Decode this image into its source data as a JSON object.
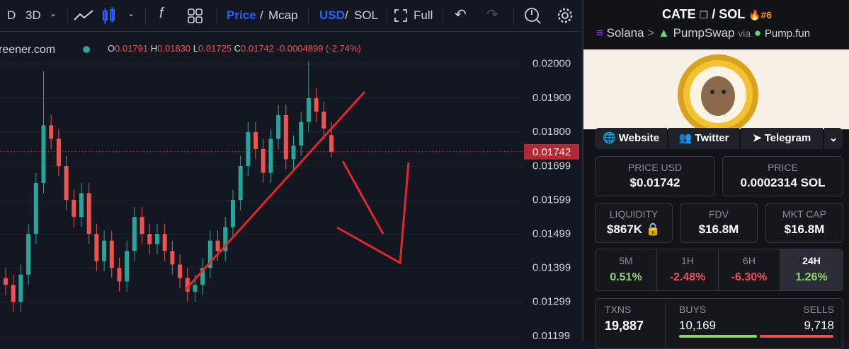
{
  "toolbar": {
    "interval": "D",
    "range": "3D",
    "fx": "f",
    "price": "Price",
    "separator": "/",
    "mcap": "Mcap",
    "usd": "USD",
    "sol": "SOL",
    "full": "Full"
  },
  "legend": {
    "source": "reener.com",
    "o_label": "O",
    "o": "0.01791",
    "h_label": "H",
    "h": "0.01830",
    "l_label": "L",
    "l": "0.01725",
    "c_label": "C",
    "c": "0.01742",
    "change": "-0.0004899 (-2.74%)"
  },
  "chart_data": {
    "type": "candlestick",
    "up_color": "#26a69a",
    "down_color": "#ef5350",
    "grid": true,
    "ylim": [
      0.01184,
      0.02089
    ],
    "yticks": [
      {
        "value": 0.02,
        "label": "0.02000"
      },
      {
        "value": 0.019,
        "label": "0.01900"
      },
      {
        "value": 0.018,
        "label": "0.01800"
      },
      0.01699,
      0.01599,
      0.01499,
      0.01399,
      0.01299,
      0.01199
    ],
    "series": [
      {
        "name": "CATE/SOL",
        "open": [
          0.0137,
          0.0135,
          0.013,
          0.0138,
          0.015,
          0.0165,
          0.0182,
          0.0178,
          0.017,
          0.016,
          0.0155,
          0.0162,
          0.015,
          0.0142,
          0.0148,
          0.014,
          0.0136,
          0.0145,
          0.0155,
          0.015,
          0.0147,
          0.015,
          0.0145,
          0.0141,
          0.0137,
          0.0133,
          0.0135,
          0.014,
          0.0148,
          0.0145,
          0.0152,
          0.016,
          0.017,
          0.018,
          0.0175,
          0.0168,
          0.0178,
          0.0185,
          0.0172,
          0.0176,
          0.0183,
          0.019,
          0.0186,
          0.01791
        ],
        "high": [
          0.014,
          0.0138,
          0.0141,
          0.0153,
          0.0168,
          0.0198,
          0.0185,
          0.0181,
          0.0173,
          0.0163,
          0.0165,
          0.0165,
          0.0153,
          0.0151,
          0.0151,
          0.0143,
          0.0148,
          0.0158,
          0.0158,
          0.0153,
          0.0153,
          0.0153,
          0.0148,
          0.0144,
          0.014,
          0.0138,
          0.0143,
          0.0151,
          0.0151,
          0.0155,
          0.0163,
          0.0173,
          0.0183,
          0.0183,
          0.0178,
          0.0181,
          0.0188,
          0.0188,
          0.0179,
          0.0186,
          0.0201,
          0.0193,
          0.0189,
          0.0183
        ],
        "low": [
          0.0132,
          0.0127,
          0.0127,
          0.0135,
          0.0147,
          0.0162,
          0.0175,
          0.0167,
          0.0157,
          0.0152,
          0.0152,
          0.0147,
          0.0139,
          0.0139,
          0.0137,
          0.0133,
          0.0133,
          0.0142,
          0.0147,
          0.0144,
          0.0144,
          0.0142,
          0.0138,
          0.0134,
          0.013,
          0.013,
          0.0132,
          0.0137,
          0.0142,
          0.0142,
          0.0149,
          0.0157,
          0.0167,
          0.0172,
          0.0165,
          0.0165,
          0.0175,
          0.0169,
          0.0169,
          0.0173,
          0.018,
          0.0183,
          0.0178,
          0.01725
        ],
        "close": [
          0.0135,
          0.013,
          0.0138,
          0.015,
          0.0165,
          0.0182,
          0.0178,
          0.017,
          0.016,
          0.0155,
          0.0162,
          0.015,
          0.0142,
          0.0148,
          0.014,
          0.0136,
          0.0145,
          0.0155,
          0.015,
          0.0147,
          0.015,
          0.0145,
          0.0141,
          0.0137,
          0.0133,
          0.0135,
          0.014,
          0.0148,
          0.0145,
          0.0152,
          0.016,
          0.017,
          0.018,
          0.0175,
          0.0168,
          0.0178,
          0.0185,
          0.0172,
          0.0176,
          0.0183,
          0.019,
          0.0186,
          0.0181,
          0.01742
        ]
      }
    ]
  },
  "pair": {
    "base": "CATE",
    "separator": "/",
    "quote": "SOL",
    "rank": "#6",
    "chain": "Solana",
    "arrow": ">",
    "dex": "PumpSwap",
    "via": "via",
    "launchpad": "Pump.fun"
  },
  "links": [
    "Website",
    "Twitter",
    "Telegram"
  ],
  "stats": {
    "price_usd": {
      "label": "PRICE USD",
      "value": "$0.01742"
    },
    "price": {
      "label": "PRICE",
      "value": "0.0002314 SOL"
    },
    "liquidity": {
      "label": "LIQUIDITY",
      "value": "$867K"
    },
    "fdv": {
      "label": "FDV",
      "value": "$16.8M"
    },
    "mkt_cap": {
      "label": "MKT CAP",
      "value": "$16.8M"
    }
  },
  "timeframes": [
    {
      "label": "5M",
      "change": "0.51%"
    },
    {
      "label": "1H",
      "change": "-2.48%"
    },
    {
      "label": "6H",
      "change": "-6.30%"
    },
    {
      "label": "24H",
      "change": "1.26%"
    }
  ],
  "txns": {
    "label": "TXNS",
    "value": "19,887",
    "buys_label": "BUYS",
    "buys": "10,169",
    "sells_label": "SELLS",
    "sells": "9,718"
  }
}
